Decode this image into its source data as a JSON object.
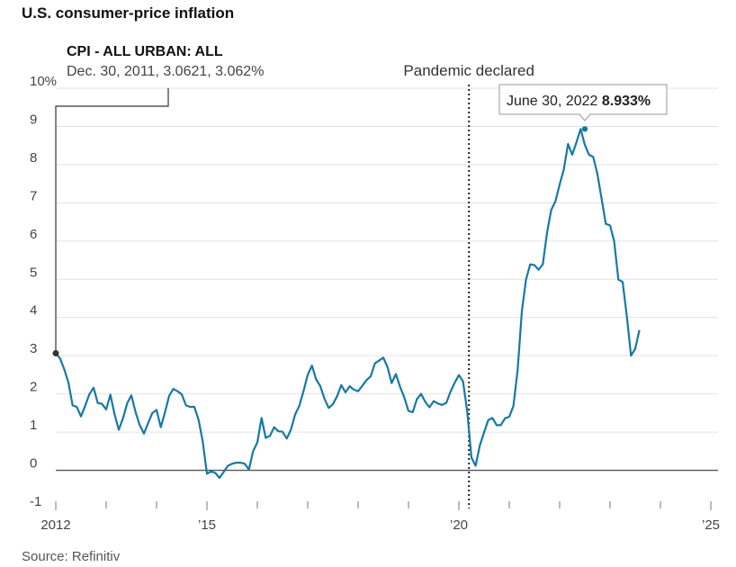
{
  "title": "U.S. consumer-price inflation",
  "source": "Source: Refinitiv",
  "chart_data": {
    "type": "line",
    "title": "U.S. consumer-price inflation",
    "series_name": "CPI - ALL URBAN: ALL",
    "y_unit_label": "10%",
    "ylim": [
      -1,
      10
    ],
    "y_ticks": [
      -1,
      0,
      1,
      2,
      3,
      4,
      5,
      6,
      7,
      8,
      9,
      10
    ],
    "y_tick_labels": [
      "-1",
      "0",
      "1",
      "2",
      "3",
      "4",
      "5",
      "6",
      "7",
      "8",
      "9",
      "10%"
    ],
    "x_ticks": [
      2012,
      2015,
      2020,
      2025
    ],
    "x_tick_labels": [
      "2012",
      "’15",
      "’20",
      "’25"
    ],
    "x_start": 2012,
    "month_step": 0.08333,
    "values": [
      3.06,
      2.93,
      2.65,
      2.3,
      1.7,
      1.66,
      1.41,
      1.69,
      1.99,
      2.16,
      1.76,
      1.74,
      1.59,
      1.98,
      1.47,
      1.06,
      1.36,
      1.75,
      1.96,
      1.52,
      1.18,
      0.96,
      1.24,
      1.5,
      1.58,
      1.13,
      1.51,
      1.95,
      2.13,
      2.07,
      1.99,
      1.7,
      1.66,
      1.66,
      1.32,
      0.76,
      -0.09,
      -0.03,
      -0.07,
      -0.2,
      -0.04,
      0.12,
      0.17,
      0.2,
      0.2,
      0.17,
      0.02,
      0.5,
      0.73,
      1.37,
      0.85,
      0.9,
      1.13,
      1.02,
      1.01,
      0.83,
      1.06,
      1.46,
      1.69,
      2.07,
      2.5,
      2.74,
      2.38,
      2.2,
      1.87,
      1.63,
      1.73,
      1.94,
      2.23,
      2.04,
      2.2,
      2.11,
      2.07,
      2.21,
      2.36,
      2.46,
      2.8,
      2.87,
      2.95,
      2.7,
      2.28,
      2.52,
      2.18,
      1.91,
      1.55,
      1.52,
      1.86,
      2.0,
      1.79,
      1.65,
      1.81,
      1.75,
      1.71,
      1.76,
      2.05,
      2.29,
      2.49,
      2.33,
      1.54,
      0.33,
      0.12,
      0.65,
      0.99,
      1.31,
      1.37,
      1.18,
      1.18,
      1.36,
      1.4,
      1.68,
      2.62,
      4.16,
      4.99,
      5.39,
      5.37,
      5.25,
      5.39,
      6.22,
      6.81,
      7.04,
      7.48,
      7.87,
      8.54,
      8.26,
      8.58,
      8.93,
      8.52,
      8.26,
      8.2,
      7.75,
      7.11,
      6.45,
      6.41,
      5.99,
      4.99,
      4.93,
      4.05,
      3.0,
      3.18,
      3.67
    ],
    "annotations": {
      "start": {
        "title": "CPI - ALL URBAN: ALL",
        "detail": "Dec. 30, 2011, 3.0621, 3.062%",
        "value": 3.062
      },
      "event": {
        "label": "Pandemic declared",
        "x": 2020.2
      },
      "peak": {
        "label": "June 30, 2022",
        "value_label": "8.933%",
        "value": 8.933,
        "x": 2022.5
      }
    },
    "colors": {
      "line": "#1679a5",
      "grid": "#e2e2e2",
      "zero": "#555555",
      "marker": "#333333"
    }
  }
}
